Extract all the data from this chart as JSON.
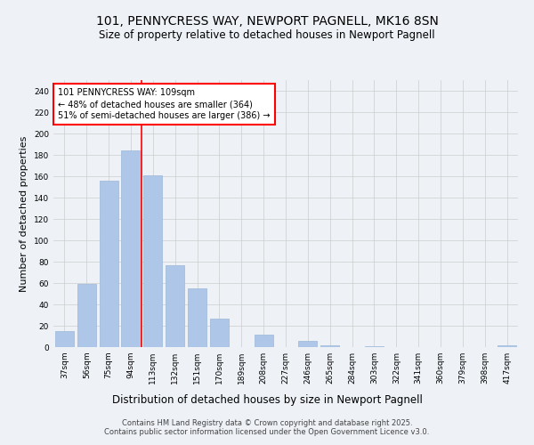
{
  "title": "101, PENNYCRESS WAY, NEWPORT PAGNELL, MK16 8SN",
  "subtitle": "Size of property relative to detached houses in Newport Pagnell",
  "xlabel": "Distribution of detached houses by size in Newport Pagnell",
  "ylabel": "Number of detached properties",
  "categories": [
    "37sqm",
    "56sqm",
    "75sqm",
    "94sqm",
    "113sqm",
    "132sqm",
    "151sqm",
    "170sqm",
    "189sqm",
    "208sqm",
    "227sqm",
    "246sqm",
    "265sqm",
    "284sqm",
    "303sqm",
    "322sqm",
    "341sqm",
    "360sqm",
    "379sqm",
    "398sqm",
    "417sqm"
  ],
  "values": [
    15,
    59,
    156,
    184,
    161,
    77,
    55,
    27,
    0,
    12,
    0,
    6,
    2,
    0,
    1,
    0,
    0,
    0,
    0,
    0,
    2
  ],
  "bar_color": "#aec6e8",
  "bar_edge_color": "#9bb8d8",
  "vline_x_index": 4,
  "vline_color": "red",
  "annotation_text": "101 PENNYCRESS WAY: 109sqm\n← 48% of detached houses are smaller (364)\n51% of semi-detached houses are larger (386) →",
  "annotation_box_color": "white",
  "annotation_box_edge_color": "red",
  "ylim": [
    0,
    250
  ],
  "yticks": [
    0,
    20,
    40,
    60,
    80,
    100,
    120,
    140,
    160,
    180,
    200,
    220,
    240
  ],
  "grid_color": "#cccccc",
  "background_color": "#eef2f7",
  "footer_text": "Contains HM Land Registry data © Crown copyright and database right 2025.\nContains public sector information licensed under the Open Government Licence v3.0.",
  "title_fontsize": 10,
  "subtitle_fontsize": 8.5,
  "xlabel_fontsize": 8.5,
  "ylabel_fontsize": 8,
  "tick_fontsize": 6.5,
  "annotation_fontsize": 7,
  "footer_fontsize": 6
}
